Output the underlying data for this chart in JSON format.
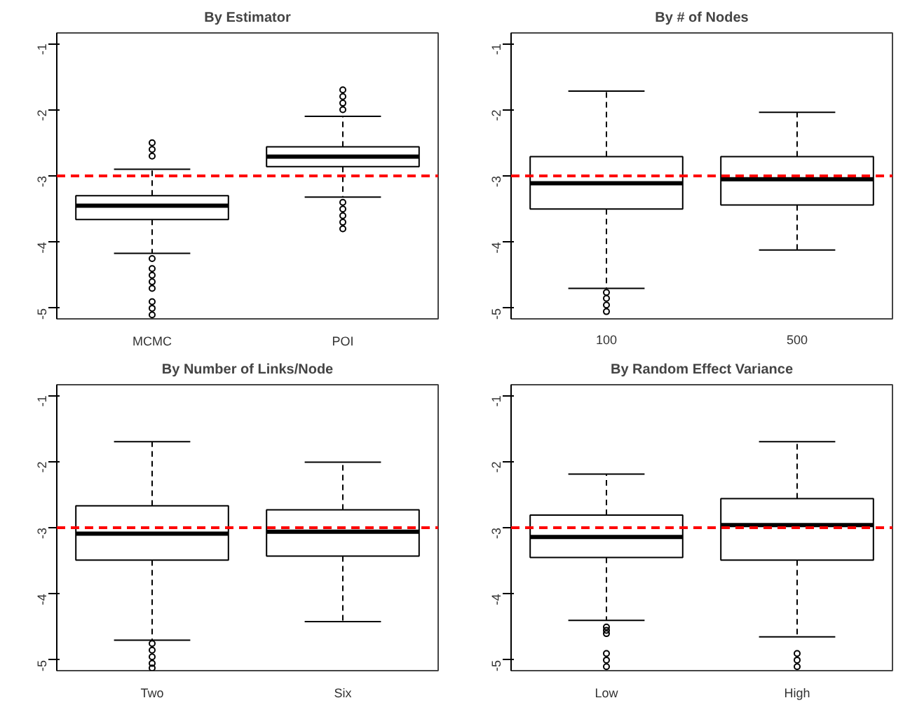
{
  "chart_data": [
    {
      "type": "box",
      "title": "By Estimator",
      "categories": [
        "MCMC",
        "POI"
      ],
      "grid": false,
      "ylim": [
        -5.16,
        -0.84
      ],
      "yticks": [
        -5,
        -4,
        -3,
        -2,
        -1
      ],
      "ref_lines": [
        {
          "axis": "y",
          "value": -3,
          "color": "#ff0000",
          "line_style": "dashed"
        }
      ],
      "boxes": [
        {
          "low": -4.17,
          "q1": -3.66,
          "median": -3.45,
          "q3": -3.3,
          "high": -2.9,
          "outliers": [
            -2.5,
            -2.6,
            -2.7,
            -4.25,
            -4.4,
            -4.5,
            -4.6,
            -4.7,
            -4.9,
            -5.0,
            -5.1
          ]
        },
        {
          "low": -3.32,
          "q1": -2.86,
          "median": -2.71,
          "q3": -2.56,
          "high": -2.1,
          "outliers": [
            -1.7,
            -1.8,
            -1.9,
            -2.0,
            -3.4,
            -3.5,
            -3.6,
            -3.7,
            -3.8
          ]
        }
      ]
    },
    {
      "type": "box",
      "title": "By # of Nodes",
      "categories": [
        "100",
        "500"
      ],
      "grid": false,
      "ylim": [
        -5.16,
        -0.84
      ],
      "yticks": [
        -5,
        -4,
        -3,
        -2,
        -1
      ],
      "ref_lines": [
        {
          "axis": "y",
          "value": -3,
          "color": "#ff0000",
          "line_style": "dashed"
        }
      ],
      "boxes": [
        {
          "low": -4.7,
          "q1": -3.5,
          "median": -3.11,
          "q3": -2.71,
          "high": -1.72,
          "outliers": [
            -4.76,
            -4.85,
            -4.95,
            -5.05
          ]
        },
        {
          "low": -4.12,
          "q1": -3.44,
          "median": -3.05,
          "q3": -2.71,
          "high": -2.04
        }
      ]
    },
    {
      "type": "box",
      "title": "By Number of Links/Node",
      "categories": [
        "Two",
        "Six"
      ],
      "grid": false,
      "ylim": [
        -5.16,
        -0.84
      ],
      "yticks": [
        -5,
        -4,
        -3,
        -2,
        -1
      ],
      "ref_lines": [
        {
          "axis": "y",
          "value": -3,
          "color": "#ff0000",
          "line_style": "dashed"
        }
      ],
      "boxes": [
        {
          "low": -4.7,
          "q1": -3.49,
          "median": -3.09,
          "q3": -2.67,
          "high": -1.7,
          "outliers": [
            -4.75,
            -4.85,
            -4.95,
            -5.05,
            -5.12
          ]
        },
        {
          "low": -4.42,
          "q1": -3.43,
          "median": -3.06,
          "q3": -2.73,
          "high": -2.01
        }
      ]
    },
    {
      "type": "box",
      "title": "By Random Effect Variance",
      "categories": [
        "Low",
        "High"
      ],
      "grid": false,
      "ylim": [
        -5.16,
        -0.84
      ],
      "yticks": [
        -5,
        -4,
        -3,
        -2,
        -1
      ],
      "ref_lines": [
        {
          "axis": "y",
          "value": -3,
          "color": "#ff0000",
          "line_style": "dashed"
        }
      ],
      "boxes": [
        {
          "low": -4.4,
          "q1": -3.45,
          "median": -3.14,
          "q3": -2.81,
          "high": -2.19,
          "outliers": [
            -4.5,
            -4.55,
            -4.6,
            -4.9,
            -5.0,
            -5.1
          ]
        },
        {
          "low": -4.65,
          "q1": -3.49,
          "median": -2.96,
          "q3": -2.56,
          "high": -1.7,
          "outliers": [
            -4.9,
            -5.0,
            -5.1
          ]
        }
      ]
    }
  ]
}
